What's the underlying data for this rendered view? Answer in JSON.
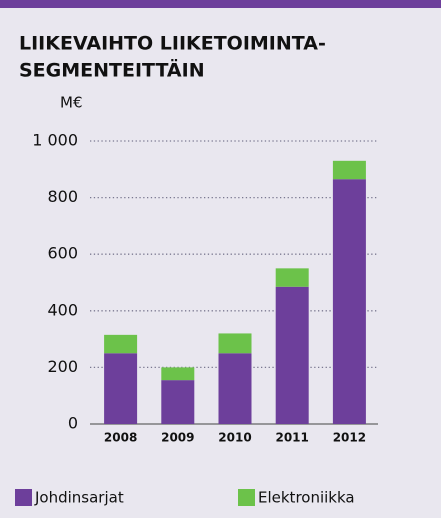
{
  "chart_data": {
    "type": "stacked_bar",
    "title_lines": [
      "LIIKEVAIHTO LIIKETOIMINTA-",
      "SEGMENTEITTÄIN"
    ],
    "y_unit": "M€",
    "categories": [
      "2008",
      "2009",
      "2010",
      "2011",
      "2012"
    ],
    "series": [
      {
        "name": "Johdinsarjat",
        "color": "#6d3f9b",
        "values": [
          250,
          155,
          250,
          485,
          865
        ]
      },
      {
        "name": "Elektroniikka",
        "color": "#6cc24a",
        "values": [
          65,
          45,
          70,
          65,
          65
        ]
      }
    ],
    "ylim": [
      0,
      1000
    ],
    "yticks": [
      0,
      200,
      400,
      600,
      800,
      {
        "value": 1000,
        "label": "1 000"
      }
    ],
    "grid": true
  }
}
